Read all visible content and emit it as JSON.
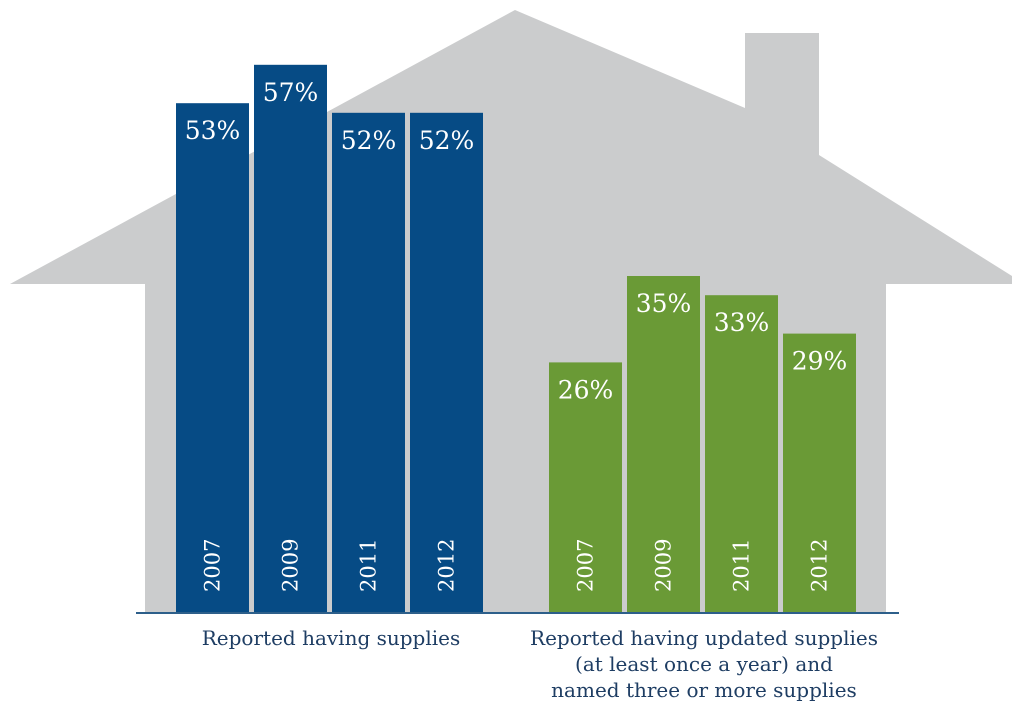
{
  "chart_data": {
    "type": "bar",
    "colors": {
      "house": "#cbcccd",
      "group_1": "#064b85",
      "group_2": "#6a9a36",
      "baseline": "#2d5f8a",
      "caption": "#1e3d63",
      "label": "#ffffff"
    },
    "value_suffix": "%",
    "groups": [
      {
        "caption": [
          "Reported having supplies"
        ],
        "categories": [
          "2007",
          "2009",
          "2011",
          "2012"
        ],
        "values": [
          53,
          57,
          52,
          52
        ]
      },
      {
        "caption": [
          "Reported having updated supplies",
          "(at least once a year) and",
          "named three or more supplies"
        ],
        "categories": [
          "2007",
          "2009",
          "2011",
          "2012"
        ],
        "values": [
          26,
          35,
          33,
          29
        ]
      }
    ]
  }
}
